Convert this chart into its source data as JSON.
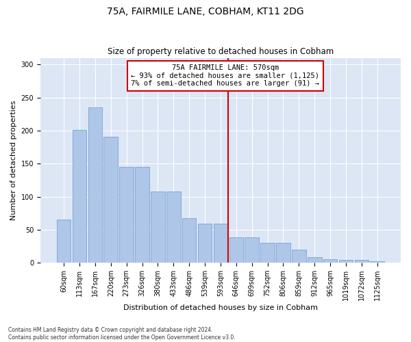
{
  "title": "75A, FAIRMILE LANE, COBHAM, KT11 2DG",
  "subtitle": "Size of property relative to detached houses in Cobham",
  "xlabel": "Distribution of detached houses by size in Cobham",
  "ylabel": "Number of detached properties",
  "categories": [
    "60sqm",
    "113sqm",
    "167sqm",
    "220sqm",
    "273sqm",
    "326sqm",
    "380sqm",
    "433sqm",
    "486sqm",
    "539sqm",
    "593sqm",
    "646sqm",
    "699sqm",
    "752sqm",
    "806sqm",
    "859sqm",
    "912sqm",
    "965sqm",
    "1019sqm",
    "1072sqm",
    "1125sqm"
  ],
  "values": [
    65,
    201,
    235,
    191,
    145,
    145,
    108,
    108,
    67,
    59,
    59,
    38,
    38,
    30,
    30,
    20,
    9,
    5,
    4,
    4,
    2
  ],
  "bar_color": "#aec6e8",
  "bar_edgecolor": "#6699cc",
  "vline_x": 10.5,
  "vline_color": "#cc0000",
  "annotation_text": "75A FAIRMILE LANE: 570sqm\n← 93% of detached houses are smaller (1,125)\n7% of semi-detached houses are larger (91) →",
  "annotation_box_color": "#cc0000",
  "footnote": "Contains HM Land Registry data © Crown copyright and database right 2024.\nContains public sector information licensed under the Open Government Licence v3.0.",
  "fig_background_color": "#ffffff",
  "plot_background_color": "#dce6f5",
  "grid_color": "#ffffff",
  "ylim": [
    0,
    310
  ],
  "yticks": [
    0,
    50,
    100,
    150,
    200,
    250,
    300
  ],
  "title_fontsize": 10,
  "subtitle_fontsize": 8.5,
  "ylabel_fontsize": 8,
  "xlabel_fontsize": 8,
  "tick_fontsize": 7,
  "footnote_fontsize": 5.5,
  "annotation_fontsize": 7.5
}
